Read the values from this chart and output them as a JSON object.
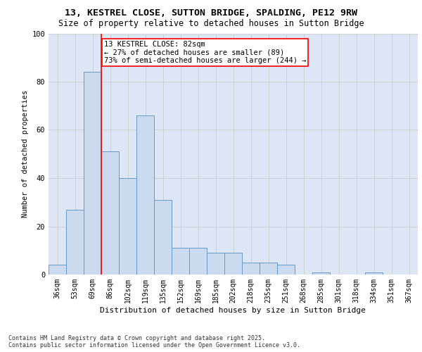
{
  "title_line1": "13, KESTREL CLOSE, SUTTON BRIDGE, SPALDING, PE12 9RW",
  "title_line2": "Size of property relative to detached houses in Sutton Bridge",
  "xlabel": "Distribution of detached houses by size in Sutton Bridge",
  "ylabel": "Number of detached properties",
  "bins": [
    "36sqm",
    "53sqm",
    "69sqm",
    "86sqm",
    "102sqm",
    "119sqm",
    "135sqm",
    "152sqm",
    "169sqm",
    "185sqm",
    "202sqm",
    "218sqm",
    "235sqm",
    "251sqm",
    "268sqm",
    "285sqm",
    "301sqm",
    "318sqm",
    "334sqm",
    "351sqm",
    "367sqm"
  ],
  "values": [
    4,
    27,
    84,
    51,
    40,
    66,
    31,
    11,
    11,
    9,
    9,
    5,
    5,
    4,
    0,
    1,
    0,
    0,
    1,
    0,
    0
  ],
  "bar_color": "#ccdaf0",
  "bar_edge_color": "#6699cc",
  "annotation_text": "13 KESTREL CLOSE: 82sqm\n← 27% of detached houses are smaller (89)\n73% of semi-detached houses are larger (244) →",
  "annotation_box_color": "white",
  "annotation_box_edge_color": "red",
  "ylim": [
    0,
    100
  ],
  "yticks": [
    0,
    20,
    40,
    60,
    80,
    100
  ],
  "grid_color": "#cccccc",
  "bg_color": "#dce6f5",
  "footer": "Contains HM Land Registry data © Crown copyright and database right 2025.\nContains public sector information licensed under the Open Government Licence v3.0.",
  "title_fontsize": 9.5,
  "subtitle_fontsize": 8.5,
  "tick_fontsize": 7,
  "ylabel_fontsize": 7.5,
  "xlabel_fontsize": 8,
  "annotation_fontsize": 7.5,
  "footer_fontsize": 6
}
